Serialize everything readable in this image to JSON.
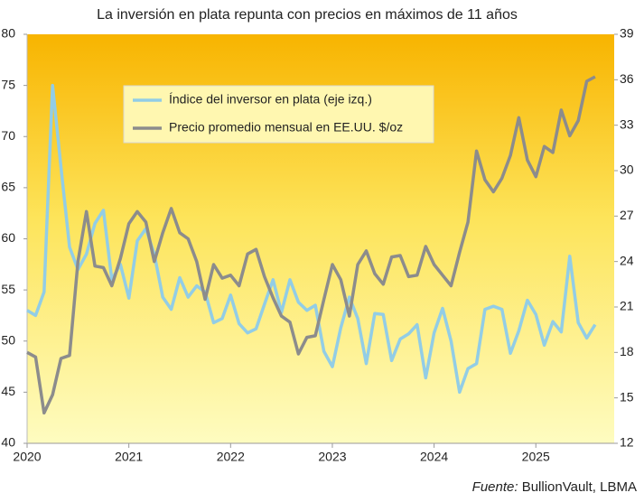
{
  "chart_data": {
    "type": "line",
    "title": "La inversión en plata repunta con precios en máximos de 11 años",
    "source_label": "Fuente:",
    "source": "BullionVault, LBMA",
    "x": [
      2020,
      2020.083,
      2020.167,
      2020.25,
      2020.333,
      2020.417,
      2020.5,
      2020.583,
      2020.667,
      2020.75,
      2020.833,
      2020.917,
      2021,
      2021.083,
      2021.167,
      2021.25,
      2021.333,
      2021.417,
      2021.5,
      2021.583,
      2021.667,
      2021.75,
      2021.833,
      2021.917,
      2022,
      2022.083,
      2022.167,
      2022.25,
      2022.333,
      2022.417,
      2022.5,
      2022.583,
      2022.667,
      2022.75,
      2022.833,
      2022.917,
      2023,
      2023.083,
      2023.167,
      2023.25,
      2023.333,
      2023.417,
      2023.5,
      2023.583,
      2023.667,
      2023.75,
      2023.833,
      2023.917,
      2024,
      2024.083,
      2024.167,
      2024.25,
      2024.333,
      2024.417,
      2024.5,
      2024.583,
      2024.667,
      2024.75,
      2024.833,
      2024.917,
      2025,
      2025.083,
      2025.167,
      2025.25,
      2025.333,
      2025.417,
      2025.5,
      2025.583
    ],
    "series": [
      {
        "name": "Índice del inversor en plata (eje izq.)",
        "color": "#92cde6",
        "values": [
          53,
          52.5,
          54.8,
          75,
          67,
          59.2,
          57,
          58.5,
          61.5,
          62.8,
          56,
          57.5,
          54.2,
          59.8,
          61,
          58.5,
          54.3,
          53.1,
          56.2,
          54.3,
          55.4,
          54.8,
          51.8,
          52.2,
          54.5,
          51.7,
          50.8,
          51.2,
          53.6,
          56,
          52.8,
          56,
          53.8,
          53,
          53.5,
          49,
          47.5,
          51.3,
          54.3,
          52.2,
          47.8,
          52.7,
          52.6,
          48.1,
          50.2,
          50.7,
          51.6,
          46.4,
          50.8,
          53.2,
          50,
          45,
          47.3,
          47.8,
          53.1,
          53.4,
          53.1,
          48.8,
          51,
          54,
          52.6,
          49.6,
          51.9,
          50.9,
          58.3,
          51.8,
          50.3,
          51.6
        ]
      },
      {
        "name": "Precio promedio mensual en EE.UU. $/oz",
        "color": "#8c8c8c",
        "axis": "y2",
        "values": [
          18.0,
          17.7,
          14.0,
          15.2,
          17.6,
          17.8,
          24.0,
          27.3,
          23.7,
          23.6,
          22.4,
          24.2,
          26.5,
          27.3,
          26.6,
          24.0,
          25.9,
          27.5,
          25.9,
          25.5,
          24.0,
          21.5,
          23.8,
          22.9,
          23.1,
          22.4,
          24.5,
          24.8,
          23.0,
          21.6,
          20.4,
          20.0,
          17.9,
          19.0,
          19.1,
          21.5,
          23.8,
          22.8,
          20.4,
          23.8,
          24.7,
          23.2,
          22.5,
          24.3,
          24.4,
          23.0,
          23.1,
          25.0,
          23.8,
          23.1,
          22.4,
          24.6,
          26.6,
          31.3,
          29.4,
          28.6,
          29.5,
          31.0,
          33.5,
          30.7,
          29.6,
          31.6,
          31.2,
          34.0,
          32.3,
          33.3,
          35.9,
          36.2
        ]
      }
    ],
    "xlim": [
      2020,
      2025.77
    ],
    "xticks": [
      2020,
      2021,
      2022,
      2023,
      2024,
      2025
    ],
    "ylim": [
      40,
      80
    ],
    "yticks": [
      40,
      45,
      50,
      55,
      60,
      65,
      70,
      75,
      80
    ],
    "y2lim": [
      12,
      39
    ],
    "y2ticks": [
      12,
      15,
      18,
      21,
      24,
      27,
      30,
      33,
      36,
      39
    ],
    "grid": false,
    "legend": "upper center"
  }
}
